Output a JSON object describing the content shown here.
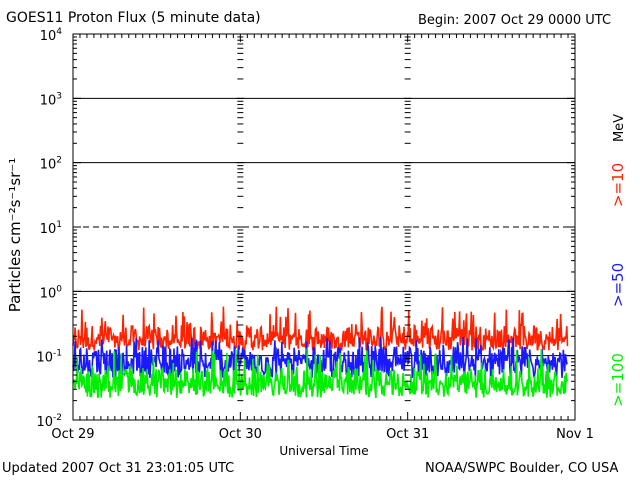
{
  "header": {
    "title": "GOES11 Proton Flux (5 minute data)",
    "begin": "Begin: 2007 Oct 29 0000 UTC"
  },
  "footer": {
    "updated": "Updated 2007 Oct 31 23:01:05 UTC",
    "credit": "NOAA/SWPC Boulder, CO USA"
  },
  "chart_data": {
    "type": "line",
    "title": "GOES11 Proton Flux (5 minute data)",
    "xlabel": "Universal Time",
    "ylabel": "Particles cm⁻²s⁻¹sr⁻¹",
    "y_scale": "log",
    "ylim": [
      0.01,
      10000
    ],
    "x_range_days": [
      0,
      3
    ],
    "x_ticks": [
      "Oct 29",
      "Oct 30",
      "Oct 31",
      "Nov 1"
    ],
    "y_ticks": [
      {
        "base": "10",
        "exp": "4"
      },
      {
        "base": "10",
        "exp": "3"
      },
      {
        "base": "10",
        "exp": "2"
      },
      {
        "base": "10",
        "exp": "1"
      },
      {
        "base": "10",
        "exp": "0"
      },
      {
        "base": "10",
        "exp": "-1"
      },
      {
        "base": "10",
        "exp": "-2"
      }
    ],
    "reference_lines": [
      {
        "value": 1000,
        "style": "solid"
      },
      {
        "value": 100,
        "style": "solid"
      },
      {
        "value": 10,
        "style": "dashed"
      },
      {
        "value": 1,
        "style": "solid"
      },
      {
        "value": 0.1,
        "style": "solid"
      }
    ],
    "unit_label": "MeV",
    "series": [
      {
        "name": ">=10",
        "color": "#ff2200",
        "min": 0.12,
        "max": 0.6,
        "typical": 0.2
      },
      {
        "name": ">=50",
        "color": "#1a1aff",
        "min": 0.045,
        "max": 0.2,
        "typical": 0.085
      },
      {
        "name": ">=100",
        "color": "#00ee00",
        "min": 0.022,
        "max": 0.13,
        "typical": 0.04
      }
    ],
    "legend_position": "right"
  }
}
